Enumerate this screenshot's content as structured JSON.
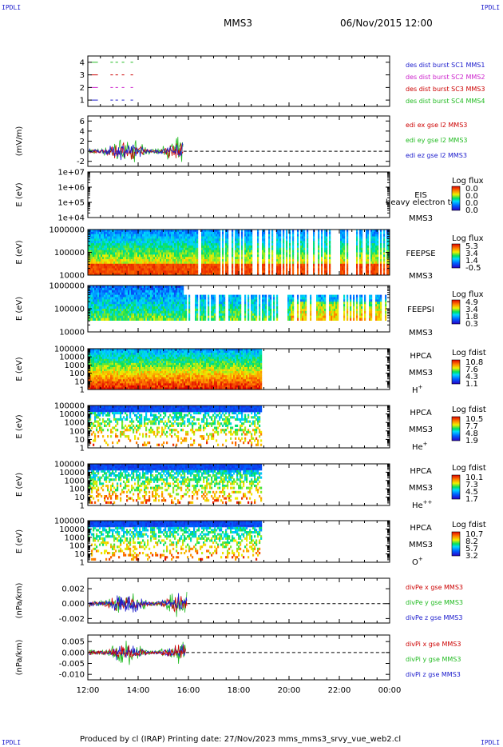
{
  "header": {
    "corner_label": "IPDLI",
    "mission": "MMS3",
    "date": "06/Nov/2015 12:00"
  },
  "footer": {
    "text": "Produced by cl (IRAP)   Printing date: 27/Nov/2023   mms_mms3_srvy_vue_web2.cl"
  },
  "colors": {
    "mms1": "#1a1acc",
    "mms2": "#cc22cc",
    "mms3": "#cc0000",
    "mms4": "#22bb22",
    "black": "#000000"
  },
  "chart_data": {
    "type": "line",
    "time_axis": {
      "ticks": [
        "12:00",
        "14:00",
        "16:00",
        "18:00",
        "20:00",
        "22:00",
        "00:00"
      ],
      "range_hours": [
        12,
        24
      ]
    },
    "panels": [
      {
        "id": "burst",
        "ylim": [
          0.5,
          4.5
        ],
        "yticks": [
          "1",
          "2",
          "3",
          "4"
        ],
        "legend": [
          {
            "text": "des dist burst SC1 MMS1",
            "color": "mms1"
          },
          {
            "text": "des dist burst SC2 MMS2",
            "color": "mms2"
          },
          {
            "text": "des dist burst SC3 MMS3",
            "color": "mms3"
          },
          {
            "text": "des dist burst SC4 MMS4",
            "color": "mms4"
          }
        ],
        "segments": [
          {
            "level": 4,
            "color": "mms4",
            "spans": [
              [
                12.1,
                12.4
              ],
              [
                12.9,
                13.0
              ],
              [
                13.1,
                13.2
              ],
              [
                13.35,
                13.45
              ],
              [
                13.7,
                13.8
              ]
            ]
          },
          {
            "level": 3,
            "color": "mms3",
            "spans": [
              [
                12.1,
                12.4
              ],
              [
                12.9,
                13.0
              ],
              [
                13.1,
                13.2
              ],
              [
                13.35,
                13.45
              ],
              [
                13.7,
                13.8
              ]
            ]
          },
          {
            "level": 2,
            "color": "mms2",
            "spans": [
              [
                12.1,
                12.4
              ],
              [
                12.9,
                13.0
              ],
              [
                13.1,
                13.2
              ],
              [
                13.35,
                13.45
              ],
              [
                13.7,
                13.8
              ]
            ]
          },
          {
            "level": 1,
            "color": "mms1",
            "spans": [
              [
                12.1,
                12.4
              ],
              [
                12.9,
                13.0
              ],
              [
                13.1,
                13.2
              ],
              [
                13.35,
                13.45
              ],
              [
                13.7,
                13.8
              ]
            ]
          }
        ]
      },
      {
        "id": "edi-e",
        "ylabel": "(mV/m)",
        "ylim": [
          -3,
          7
        ],
        "yticks": [
          "-2",
          "0",
          "2",
          "4",
          "6"
        ],
        "legend": [
          {
            "text": "edi ex gse l2 MMS3",
            "color": "mms3"
          },
          {
            "text": "edi ey gse l2 MMS3",
            "color": "mms4"
          },
          {
            "text": "edi ez gse l2 MMS3",
            "color": "mms1"
          }
        ],
        "zero_line": true,
        "signal": {
          "end_hour": 15.8,
          "amp": 3.2,
          "colors": [
            "mms4",
            "mms3",
            "mms1"
          ]
        }
      },
      {
        "id": "eis",
        "ylabel": "E (eV)",
        "ylim_log": [
          4,
          7
        ],
        "yticks": [
          "1e+04",
          "1e+05",
          "1e+06",
          "1e+07"
        ],
        "instrument": "EIS",
        "spacecraft": "MMS3",
        "overlay": "heavy electron to",
        "cbar_title": "Log flux",
        "cbar_ticks": [
          "0.0",
          "0.0",
          "0.0",
          "0.0"
        ]
      },
      {
        "id": "feeps-e",
        "ylabel": "E (eV)",
        "ylim_log": [
          4,
          6
        ],
        "yticks": [
          "10000",
          "100000",
          "1000000"
        ],
        "instrument": "FEEPSE",
        "spacecraft": "MMS3",
        "cbar_title": "Log flux",
        "cbar_ticks": [
          "5.3",
          "3.4",
          "1.4",
          "-0.5"
        ],
        "spectrogram": {
          "start": 12,
          "end": 24,
          "dense_end": 16.3,
          "floor_frac": 0.3,
          "band": "electron"
        }
      },
      {
        "id": "feeps-i",
        "ylabel": "E (eV)",
        "ylim_log": [
          4,
          6
        ],
        "yticks": [
          "10000",
          "100000",
          "1000000"
        ],
        "instrument": "FEEPSI",
        "spacecraft": "MMS3",
        "cbar_title": "Log flux",
        "cbar_ticks": [
          "4.9",
          "3.4",
          "1.8",
          "0.3"
        ],
        "spectrogram": {
          "start": 12,
          "end": 24,
          "dense_end": 15.8,
          "floor_frac": 0.2,
          "band": "ion"
        }
      },
      {
        "id": "hpca-h",
        "ylabel": "E (eV)",
        "ylim_log": [
          0,
          5
        ],
        "yticks": [
          "1",
          "10",
          "100",
          "1000",
          "10000",
          "100000"
        ],
        "instrument": "HPCA",
        "spacecraft": "MMS3",
        "species": "H",
        "charge": "+",
        "cbar_title": "Log fdist",
        "cbar_ticks": [
          "10.8",
          "7.6",
          "4.3",
          "1.1"
        ],
        "spectrogram": {
          "start": 12,
          "end": 18.95,
          "top_frac": 0.0,
          "fill": 1.0,
          "style": "hplus"
        }
      },
      {
        "id": "hpca-he1",
        "ylabel": "E (eV)",
        "ylim_log": [
          0,
          5
        ],
        "yticks": [
          "1",
          "10",
          "100",
          "1000",
          "10000",
          "100000"
        ],
        "instrument": "HPCA",
        "spacecraft": "MMS3",
        "species": "He",
        "charge": "+",
        "cbar_title": "Log fdist",
        "cbar_ticks": [
          "10.5",
          "7.7",
          "4.8",
          "1.9"
        ],
        "spectrogram": {
          "start": 12,
          "end": 18.95,
          "top_frac": 0.0,
          "fill": 0.55,
          "style": "minor"
        }
      },
      {
        "id": "hpca-he2",
        "ylabel": "E (eV)",
        "ylim_log": [
          0,
          5
        ],
        "yticks": [
          "1",
          "10",
          "100",
          "1000",
          "10000",
          "100000"
        ],
        "instrument": "HPCA",
        "spacecraft": "MMS3",
        "species": "He",
        "charge": "++",
        "cbar_title": "Log fdist",
        "cbar_ticks": [
          "10.1",
          "7.3",
          "4.5",
          "1.7"
        ],
        "spectrogram": {
          "start": 12,
          "end": 18.95,
          "top_frac": 0.0,
          "fill": 0.7,
          "style": "minor"
        }
      },
      {
        "id": "hpca-o",
        "ylabel": "E (eV)",
        "ylim_log": [
          0,
          5
        ],
        "yticks": [
          "1",
          "10",
          "100",
          "1000",
          "10000",
          "100000"
        ],
        "instrument": "HPCA",
        "spacecraft": "MMS3",
        "species": "O",
        "charge": "+",
        "cbar_title": "Log fdist",
        "cbar_ticks": [
          "10.7",
          "8.2",
          "5.7",
          "3.2"
        ],
        "spectrogram": {
          "start": 12,
          "end": 18.95,
          "top_frac": 0.0,
          "fill": 0.6,
          "style": "minor"
        }
      },
      {
        "id": "divpe",
        "ylabel": "(nPa/km)",
        "ylim": [
          -0.0026,
          0.0034
        ],
        "yticks": [
          "-0.002",
          "0.000",
          "0.002"
        ],
        "legend": [
          {
            "text": "divPe x gse MMS3",
            "color": "mms3"
          },
          {
            "text": "divPe y gse MMS3",
            "color": "mms4"
          },
          {
            "text": "divPe z gse MMS3",
            "color": "mms1"
          }
        ],
        "zero_line": true,
        "signal": {
          "end_hour": 15.95,
          "amp": 0.0022,
          "colors": [
            "mms4",
            "mms3",
            "mms1"
          ]
        }
      },
      {
        "id": "divpi",
        "ylabel": "(nPa/km)",
        "ylim": [
          -0.0125,
          0.008
        ],
        "yticks": [
          "-0.010",
          "-0.005",
          "0.000",
          "0.005"
        ],
        "legend": [
          {
            "text": "divPi x gse MMS3",
            "color": "mms3"
          },
          {
            "text": "divPi y gse MMS3",
            "color": "mms4"
          },
          {
            "text": "divPi z gse MMS3",
            "color": "mms1"
          }
        ],
        "zero_line": true,
        "signal": {
          "end_hour": 15.9,
          "amp": 0.0065,
          "colors": [
            "mms4",
            "mms1",
            "mms3"
          ]
        }
      }
    ]
  }
}
